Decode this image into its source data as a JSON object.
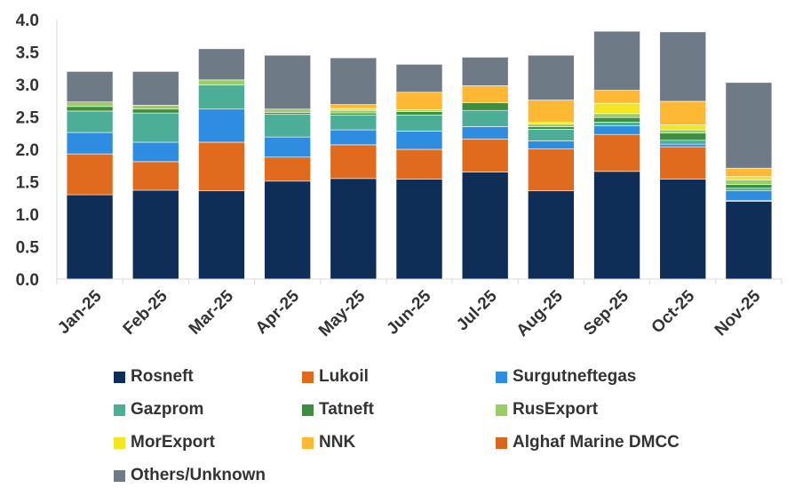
{
  "chart_data": {
    "type": "bar",
    "stacked": true,
    "title": "",
    "xlabel": "",
    "ylabel": "",
    "ylim": [
      0,
      4.0
    ],
    "yticks": [
      "0.0",
      "0.5",
      "1.0",
      "1.5",
      "2.0",
      "2.5",
      "3.0",
      "3.5",
      "4.0"
    ],
    "categories": [
      "Jan-25",
      "Feb-25",
      "Mar-25",
      "Apr-25",
      "May-25",
      "Jun-25",
      "Jul-25",
      "Aug-25",
      "Sep-25",
      "Oct-25",
      "Nov-25"
    ],
    "series": [
      {
        "name": "Rosneft",
        "color": "#0e2d57",
        "values": [
          1.3,
          1.37,
          1.36,
          1.51,
          1.55,
          1.54,
          1.65,
          1.36,
          1.66,
          1.54,
          1.2
        ]
      },
      {
        "name": "Lukoil",
        "color": "#e06b1f",
        "values": [
          0.63,
          0.44,
          0.75,
          0.37,
          0.52,
          0.46,
          0.51,
          0.65,
          0.57,
          0.5,
          0.01
        ]
      },
      {
        "name": "Surgutneftegas",
        "color": "#2e8de0",
        "values": [
          0.33,
          0.3,
          0.51,
          0.31,
          0.23,
          0.28,
          0.19,
          0.12,
          0.13,
          0.04,
          0.15
        ]
      },
      {
        "name": "Gazprom",
        "color": "#4cae97",
        "values": [
          0.33,
          0.45,
          0.37,
          0.35,
          0.23,
          0.25,
          0.25,
          0.18,
          0.06,
          0.06,
          0.04
        ]
      },
      {
        "name": "Tatneft",
        "color": "#3d8f3f",
        "values": [
          0.07,
          0.06,
          0.0,
          0.03,
          0.03,
          0.05,
          0.12,
          0.04,
          0.07,
          0.11,
          0.06
        ]
      },
      {
        "name": "RusExport",
        "color": "#9ccc65",
        "values": [
          0.07,
          0.06,
          0.08,
          0.05,
          0.04,
          0.03,
          0.0,
          0.04,
          0.06,
          0.05,
          0.07
        ]
      },
      {
        "name": "MorExport",
        "color": "#f3e51f",
        "values": [
          0.0,
          0.0,
          0.0,
          0.0,
          0.03,
          0.0,
          0.0,
          0.03,
          0.16,
          0.08,
          0.05
        ]
      },
      {
        "name": "NNK",
        "color": "#ffb833",
        "values": [
          0.0,
          0.0,
          0.0,
          0.0,
          0.06,
          0.27,
          0.26,
          0.34,
          0.2,
          0.36,
          0.13
        ]
      },
      {
        "name": "Alghaf Marine DMCC",
        "color": "#d9661c",
        "values": [
          0.0,
          0.0,
          0.0,
          0.0,
          0.0,
          0.0,
          0.0,
          0.0,
          0.0,
          0.0,
          0.0
        ]
      },
      {
        "name": "Others/Unknown",
        "color": "#6e7a86",
        "values": [
          0.47,
          0.52,
          0.48,
          0.83,
          0.72,
          0.43,
          0.44,
          0.69,
          0.91,
          1.07,
          1.32
        ]
      }
    ],
    "grid": false,
    "legend_position": "bottom"
  }
}
